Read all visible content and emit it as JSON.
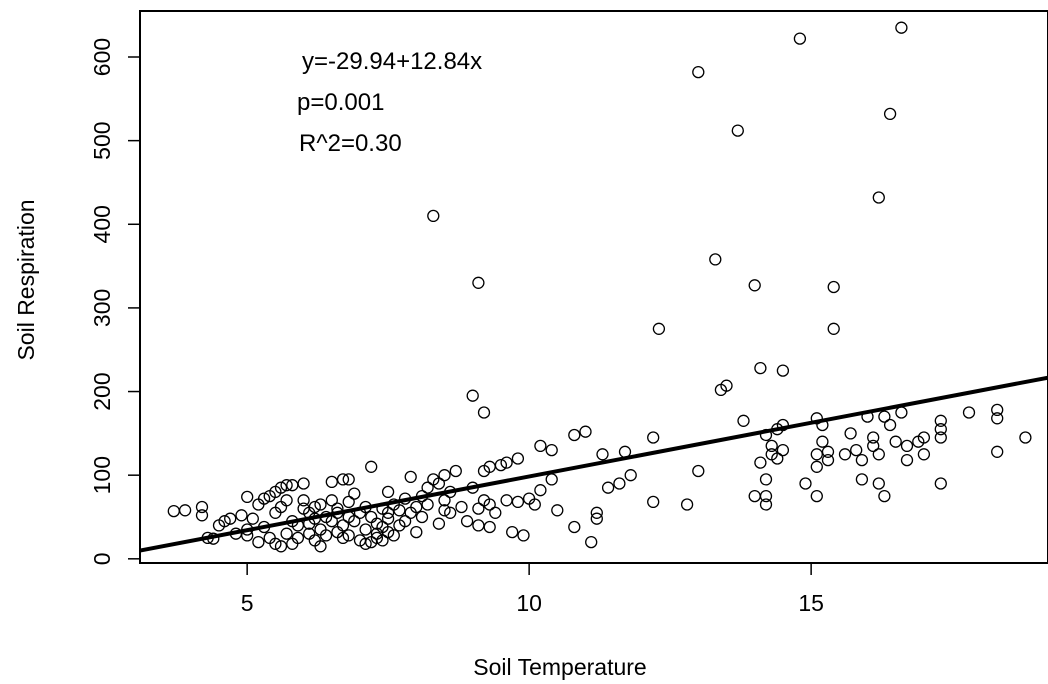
{
  "chart_data": {
    "type": "scatter",
    "title": "",
    "xlabel": "Soil Temperature",
    "ylabel": "Soil Respiration",
    "xlim": [
      3.1,
      19.2
    ],
    "ylim": [
      -5,
      655
    ],
    "x_ticks": [
      5,
      10,
      15
    ],
    "x_tick_labels": [
      "5",
      "10",
      "15"
    ],
    "y_ticks": [
      0,
      100,
      200,
      300,
      400,
      500,
      600
    ],
    "y_tick_labels": [
      "0",
      "100",
      "200",
      "300",
      "400",
      "500",
      "600"
    ],
    "grid": false,
    "legend": "none",
    "annotations": [
      "y=-29.94+12.84x",
      "p=0.001",
      "R^2=0.30"
    ],
    "regression": {
      "intercept": -29.94,
      "slope": 12.84
    },
    "colors": {
      "points": "#000000",
      "line": "#000000",
      "background": "#ffffff"
    },
    "points": [
      [
        3.7,
        57
      ],
      [
        3.9,
        58
      ],
      [
        4.2,
        62
      ],
      [
        4.2,
        52
      ],
      [
        4.3,
        25
      ],
      [
        4.4,
        24
      ],
      [
        4.5,
        40
      ],
      [
        4.6,
        45
      ],
      [
        4.7,
        48
      ],
      [
        4.8,
        30
      ],
      [
        4.9,
        52
      ],
      [
        5.0,
        74
      ],
      [
        5.0,
        35
      ],
      [
        5.0,
        28
      ],
      [
        5.1,
        48
      ],
      [
        5.2,
        65
      ],
      [
        5.2,
        20
      ],
      [
        5.3,
        72
      ],
      [
        5.3,
        38
      ],
      [
        5.4,
        75
      ],
      [
        5.4,
        25
      ],
      [
        5.5,
        80
      ],
      [
        5.5,
        55
      ],
      [
        5.5,
        18
      ],
      [
        5.6,
        85
      ],
      [
        5.6,
        62
      ],
      [
        5.6,
        15
      ],
      [
        5.7,
        88
      ],
      [
        5.7,
        70
      ],
      [
        5.7,
        30
      ],
      [
        5.8,
        88
      ],
      [
        5.8,
        45
      ],
      [
        5.8,
        18
      ],
      [
        5.9,
        40
      ],
      [
        5.9,
        25
      ],
      [
        6.0,
        90
      ],
      [
        6.0,
        70
      ],
      [
        6.0,
        60
      ],
      [
        6.1,
        42
      ],
      [
        6.1,
        55
      ],
      [
        6.1,
        30
      ],
      [
        6.2,
        62
      ],
      [
        6.2,
        48
      ],
      [
        6.2,
        22
      ],
      [
        6.3,
        65
      ],
      [
        6.3,
        35
      ],
      [
        6.3,
        15
      ],
      [
        6.4,
        50
      ],
      [
        6.4,
        28
      ],
      [
        6.5,
        92
      ],
      [
        6.5,
        70
      ],
      [
        6.5,
        45
      ],
      [
        6.6,
        60
      ],
      [
        6.6,
        32
      ],
      [
        6.6,
        55
      ],
      [
        6.7,
        95
      ],
      [
        6.7,
        40
      ],
      [
        6.7,
        25
      ],
      [
        6.8,
        95
      ],
      [
        6.8,
        68
      ],
      [
        6.8,
        50
      ],
      [
        6.8,
        28
      ],
      [
        6.9,
        78
      ],
      [
        6.9,
        45
      ],
      [
        7.0,
        55
      ],
      [
        7.0,
        22
      ],
      [
        7.1,
        62
      ],
      [
        7.1,
        35
      ],
      [
        7.1,
        18
      ],
      [
        7.2,
        110
      ],
      [
        7.2,
        50
      ],
      [
        7.2,
        20
      ],
      [
        7.3,
        42
      ],
      [
        7.3,
        25
      ],
      [
        7.3,
        30
      ],
      [
        7.4,
        60
      ],
      [
        7.4,
        38
      ],
      [
        7.4,
        22
      ],
      [
        7.5,
        80
      ],
      [
        7.5,
        48
      ],
      [
        7.5,
        32
      ],
      [
        7.5,
        55
      ],
      [
        7.6,
        65
      ],
      [
        7.6,
        28
      ],
      [
        7.7,
        58
      ],
      [
        7.7,
        40
      ],
      [
        7.8,
        72
      ],
      [
        7.8,
        45
      ],
      [
        7.9,
        98
      ],
      [
        7.9,
        55
      ],
      [
        8.0,
        62
      ],
      [
        8.0,
        32
      ],
      [
        8.1,
        75
      ],
      [
        8.1,
        50
      ],
      [
        8.2,
        85
      ],
      [
        8.2,
        65
      ],
      [
        8.3,
        95
      ],
      [
        8.3,
        410
      ],
      [
        8.4,
        90
      ],
      [
        8.4,
        42
      ],
      [
        8.5,
        100
      ],
      [
        8.5,
        70
      ],
      [
        8.5,
        58
      ],
      [
        8.6,
        80
      ],
      [
        8.6,
        55
      ],
      [
        8.7,
        105
      ],
      [
        8.8,
        62
      ],
      [
        8.9,
        45
      ],
      [
        9.0,
        195
      ],
      [
        9.0,
        85
      ],
      [
        9.1,
        330
      ],
      [
        9.1,
        60
      ],
      [
        9.1,
        40
      ],
      [
        9.2,
        105
      ],
      [
        9.2,
        175
      ],
      [
        9.2,
        70
      ],
      [
        9.3,
        110
      ],
      [
        9.3,
        38
      ],
      [
        9.3,
        65
      ],
      [
        9.4,
        55
      ],
      [
        9.5,
        112
      ],
      [
        9.6,
        115
      ],
      [
        9.6,
        70
      ],
      [
        9.7,
        32
      ],
      [
        9.8,
        120
      ],
      [
        9.8,
        68
      ],
      [
        9.9,
        28
      ],
      [
        10.0,
        72
      ],
      [
        10.1,
        65
      ],
      [
        10.2,
        135
      ],
      [
        10.2,
        82
      ],
      [
        10.4,
        130
      ],
      [
        10.4,
        95
      ],
      [
        10.5,
        58
      ],
      [
        10.8,
        148
      ],
      [
        10.8,
        38
      ],
      [
        11.0,
        152
      ],
      [
        11.1,
        20
      ],
      [
        11.2,
        55
      ],
      [
        11.2,
        48
      ],
      [
        11.3,
        125
      ],
      [
        11.4,
        85
      ],
      [
        11.6,
        90
      ],
      [
        11.7,
        128
      ],
      [
        11.8,
        100
      ],
      [
        12.2,
        145
      ],
      [
        12.2,
        68
      ],
      [
        12.3,
        275
      ],
      [
        12.8,
        65
      ],
      [
        13.0,
        582
      ],
      [
        13.0,
        105
      ],
      [
        13.3,
        358
      ],
      [
        13.4,
        202
      ],
      [
        13.5,
        207
      ],
      [
        13.7,
        512
      ],
      [
        13.8,
        165
      ],
      [
        14.0,
        327
      ],
      [
        14.0,
        75
      ],
      [
        14.1,
        228
      ],
      [
        14.1,
        115
      ],
      [
        14.2,
        148
      ],
      [
        14.2,
        95
      ],
      [
        14.2,
        75
      ],
      [
        14.2,
        65
      ],
      [
        14.3,
        135
      ],
      [
        14.3,
        125
      ],
      [
        14.4,
        155
      ],
      [
        14.4,
        120
      ],
      [
        14.5,
        225
      ],
      [
        14.5,
        160
      ],
      [
        14.5,
        130
      ],
      [
        14.8,
        622
      ],
      [
        14.9,
        90
      ],
      [
        15.1,
        168
      ],
      [
        15.1,
        125
      ],
      [
        15.1,
        110
      ],
      [
        15.1,
        75
      ],
      [
        15.2,
        160
      ],
      [
        15.2,
        140
      ],
      [
        15.3,
        118
      ],
      [
        15.3,
        128
      ],
      [
        15.4,
        275
      ],
      [
        15.4,
        325
      ],
      [
        15.6,
        125
      ],
      [
        15.7,
        150
      ],
      [
        15.8,
        130
      ],
      [
        15.9,
        118
      ],
      [
        15.9,
        95
      ],
      [
        16.0,
        170
      ],
      [
        16.1,
        145
      ],
      [
        16.1,
        135
      ],
      [
        16.2,
        432
      ],
      [
        16.2,
        125
      ],
      [
        16.2,
        90
      ],
      [
        16.3,
        170
      ],
      [
        16.3,
        75
      ],
      [
        16.4,
        532
      ],
      [
        16.4,
        160
      ],
      [
        16.5,
        140
      ],
      [
        16.6,
        635
      ],
      [
        16.6,
        175
      ],
      [
        16.7,
        135
      ],
      [
        16.7,
        118
      ],
      [
        16.9,
        140
      ],
      [
        17.0,
        145
      ],
      [
        17.0,
        125
      ],
      [
        17.3,
        165
      ],
      [
        17.3,
        155
      ],
      [
        17.3,
        145
      ],
      [
        17.3,
        90
      ],
      [
        17.8,
        175
      ],
      [
        18.3,
        178
      ],
      [
        18.3,
        168
      ],
      [
        18.3,
        128
      ],
      [
        18.8,
        145
      ]
    ]
  }
}
